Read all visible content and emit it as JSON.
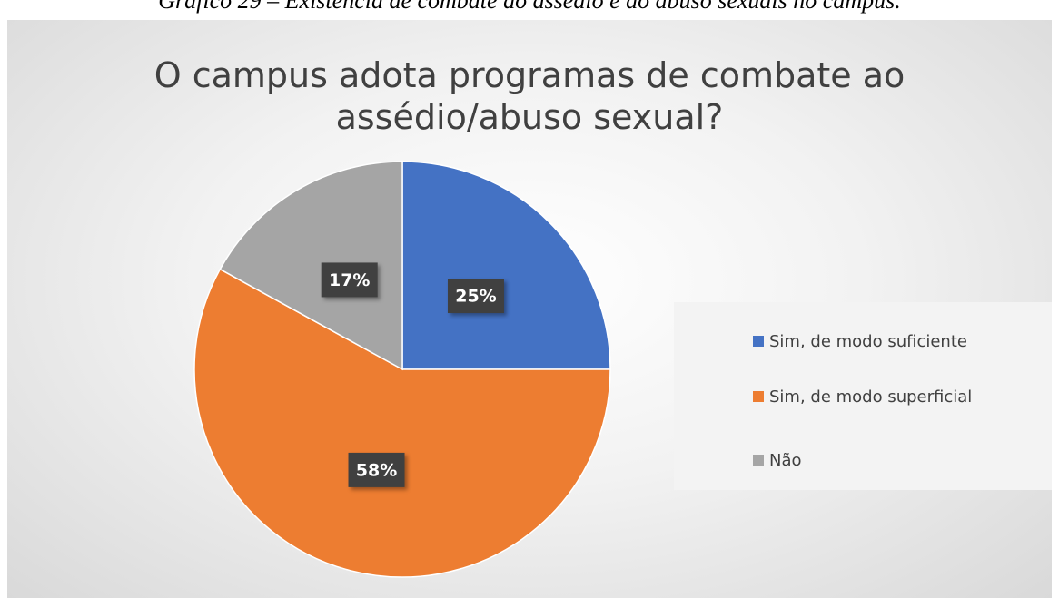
{
  "caption": "Gráfico 29 – Existência de combate ao assédio e ao abuso sexuais no campus.",
  "chart_data": {
    "type": "pie",
    "title": "O campus adota programas de combate ao assédio/abuso sexual?",
    "categories": [
      "Sim, de modo suficiente",
      "Sim, de modo superficial",
      "Não"
    ],
    "values": [
      25,
      58,
      17
    ],
    "value_labels": [
      "25%",
      "58%",
      "17%"
    ],
    "colors": [
      "#4472c4",
      "#ed7d31",
      "#a5a5a5"
    ],
    "legend": "right"
  }
}
